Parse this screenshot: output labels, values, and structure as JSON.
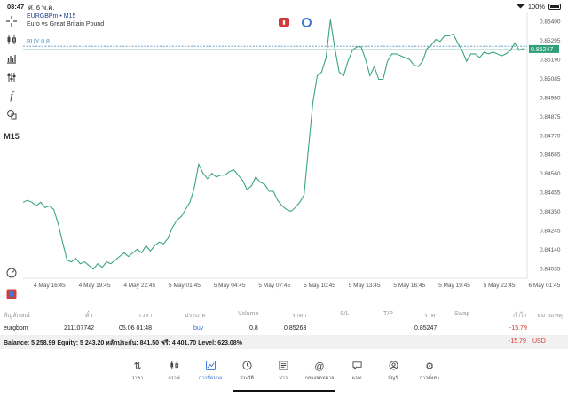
{
  "status": {
    "time": "08:47",
    "date": "ศ. 6 พ.ค.",
    "battery": "100%"
  },
  "toolbar": {
    "icons": [
      "crosshair-icon",
      "candlestick-icon",
      "bars-chart-icon",
      "sliders-icon",
      "function-icon",
      "shapes-icon"
    ],
    "timeframe": "M15"
  },
  "chart": {
    "symbol": "EURGBPm • M15",
    "description": "Euro vs Great Britain Pound",
    "buy_label": "BUY 0.8",
    "current_price": "0.85247",
    "colors": {
      "line": "#3aa57a",
      "price_tag": "#2fa07a",
      "buy_line": "#4a90c8"
    }
  },
  "chart_data": {
    "type": "line",
    "title": "",
    "x_ticks": [
      "4 May 16:45",
      "4 May 19:45",
      "4 May 22:45",
      "5 May 01:45",
      "5 May 04:45",
      "5 May 07:45",
      "5 May 10:45",
      "5 May 13:45",
      "5 May 16:45",
      "5 May 19:45",
      "5 May 22:45",
      "6 May 01:45"
    ],
    "y_ticks": [
      "0.85400",
      "0.85295",
      "0.85190",
      "0.85085",
      "0.84980",
      "0.84875",
      "0.84770",
      "0.84665",
      "0.84560",
      "0.84455",
      "0.84350",
      "0.84245",
      "0.84140",
      "0.84035"
    ],
    "ylim": [
      0.8398,
      0.8545
    ],
    "buy_price": 0.85263,
    "last_price": 0.85247,
    "series": [
      {
        "values": [
          0.844,
          0.8441,
          0.844,
          0.8438,
          0.844,
          0.8437,
          0.8438,
          0.8436,
          0.8428,
          0.8418,
          0.8408,
          0.8407,
          0.8409,
          0.8406,
          0.8407,
          0.8405,
          0.8403,
          0.8406,
          0.8404,
          0.8407,
          0.8406,
          0.8408,
          0.841,
          0.8412,
          0.841,
          0.8412,
          0.8414,
          0.8412,
          0.8416,
          0.8413,
          0.8416,
          0.8418,
          0.8417,
          0.842,
          0.8426,
          0.843,
          0.8432,
          0.8436,
          0.844,
          0.8448,
          0.8461,
          0.8456,
          0.8453,
          0.8456,
          0.8454,
          0.8455,
          0.8455,
          0.8457,
          0.8458,
          0.8455,
          0.8452,
          0.8447,
          0.8449,
          0.8454,
          0.8451,
          0.845,
          0.8446,
          0.8446,
          0.8441,
          0.8438,
          0.8436,
          0.8435,
          0.8437,
          0.844,
          0.8444,
          0.847,
          0.8495,
          0.851,
          0.8512,
          0.852,
          0.8541,
          0.8525,
          0.8512,
          0.851,
          0.8518,
          0.8524,
          0.8526,
          0.8526,
          0.8519,
          0.851,
          0.8515,
          0.8508,
          0.8508,
          0.8518,
          0.8522,
          0.8522,
          0.8521,
          0.852,
          0.8519,
          0.8516,
          0.8515,
          0.8518,
          0.8525,
          0.8527,
          0.853,
          0.8529,
          0.8532,
          0.8532,
          0.8533,
          0.8528,
          0.8524,
          0.8518,
          0.8522,
          0.8522,
          0.852,
          0.8523,
          0.8522,
          0.8523,
          0.8522,
          0.8521,
          0.8522,
          0.8524,
          0.8528,
          0.8524,
          0.8525
        ]
      }
    ]
  },
  "positions": {
    "headers": [
      "สัญลักษณ์",
      "ตั๋ว",
      "เวลา",
      "ประเภท",
      "Volume",
      "ราคา",
      "S/L",
      "T/P",
      "ราคา",
      "Swap",
      "กำไร",
      "หมายเหตุ"
    ],
    "row": {
      "symbol": "eurgbpm",
      "ticket": "211107742",
      "time": "05.06 01:48",
      "type": "buy",
      "volume": "0.8",
      "open_price": "0.85263",
      "current_price": "0.85247",
      "profit": "-15.79"
    },
    "balance_text": "Balance: 5 258.99 Equity: 5 243.20 หลักประกัน: 841.50 ฟรี: 4 401.70 Level: 623.08%",
    "total_profit": "-15.79",
    "currency": "USD"
  },
  "nav": {
    "items": [
      {
        "label": "ราคา",
        "icon": "arrows-updown-icon"
      },
      {
        "label": "กราฟ",
        "icon": "candle-icon"
      },
      {
        "label": "การซื้อขาย",
        "icon": "trade-chart-icon",
        "active": true
      },
      {
        "label": "ประวัติ",
        "icon": "history-clock-icon"
      },
      {
        "label": "ข่าว",
        "icon": "news-icon"
      },
      {
        "label": "กล่องจดหมาย",
        "icon": "mailbox-at-icon"
      },
      {
        "label": "แชท",
        "icon": "chat-icon"
      },
      {
        "label": "บัญชี",
        "icon": "account-icon"
      },
      {
        "label": "การตั้งค่า",
        "icon": "settings-gear-icon"
      }
    ]
  }
}
